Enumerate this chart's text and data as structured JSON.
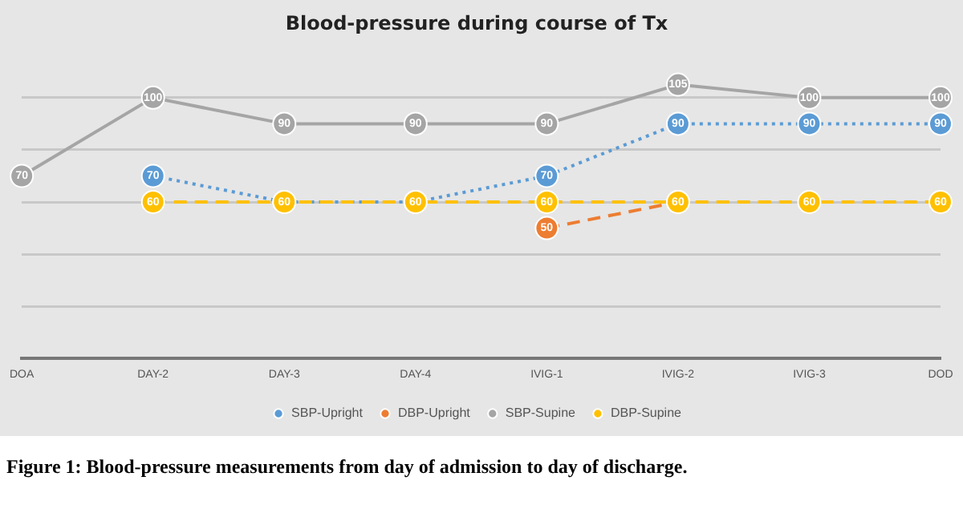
{
  "chart_data": {
    "type": "line",
    "title": "Blood-pressure during course of Tx",
    "categories": [
      "DOA",
      "DAY-2",
      "DAY-3",
      "DAY-4",
      "IVIG-1",
      "IVIG-2",
      "IVIG-3",
      "DOD"
    ],
    "series": [
      {
        "name": "SBP-Upright",
        "color": "#5b9bd5",
        "line_style": "dotted",
        "values": [
          null,
          70,
          60,
          60,
          70,
          90,
          90,
          90
        ],
        "value_labels": [
          null,
          "70",
          null,
          null,
          "70",
          "90",
          "90",
          "90"
        ]
      },
      {
        "name": "DBP-Upright",
        "color": "#ed7d31",
        "line_style": "dashed",
        "values": [
          null,
          null,
          null,
          null,
          50,
          60,
          null,
          null
        ],
        "value_labels": [
          null,
          null,
          null,
          null,
          "50",
          null,
          null,
          null
        ]
      },
      {
        "name": "SBP-Supine",
        "color": "#a5a5a5",
        "line_style": "solid",
        "values": [
          70,
          100,
          90,
          90,
          90,
          105,
          100,
          100
        ]
      },
      {
        "name": "DBP-Supine",
        "color": "#ffc000",
        "line_style": "dashed",
        "values": [
          null,
          60,
          60,
          60,
          60,
          60,
          60,
          60
        ]
      }
    ],
    "yticks": [
      {
        "value": 0,
        "label": null
      },
      {
        "value": 20,
        "label": null
      },
      {
        "value": 40,
        "label": null
      },
      {
        "value": 60,
        "label": null
      },
      {
        "value": 80,
        "label": null
      },
      {
        "value": 100,
        "label": null
      }
    ],
    "tick_labels": "x",
    "grid": "y",
    "legend": "bottom",
    "marker": "circle",
    "data_labels": true,
    "annotations": [
      "Figure 1: Blood-pressure measurements from day of admission to day of discharge."
    ]
  }
}
